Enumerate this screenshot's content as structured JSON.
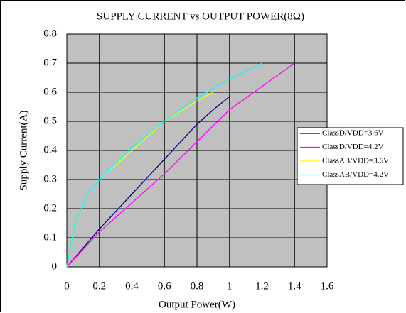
{
  "chart_data": {
    "type": "line",
    "title": "SUPPLY CURRENT vs OUTPUT POWER(8Ω)",
    "x_label": "Output Power(W)",
    "y_label": "Supply Current(A)",
    "xlim": [
      0,
      1.6
    ],
    "xticks": [
      0,
      0.2,
      0.4,
      0.6,
      0.8,
      1,
      1.2,
      1.4,
      1.6
    ],
    "ylim": [
      0,
      0.8
    ],
    "yticks": [
      0,
      0.1,
      0.2,
      0.3,
      0.4,
      0.5,
      0.6,
      0.7,
      0.8
    ],
    "grid": true,
    "legend": "right",
    "series": [
      {
        "name": "ClassD/VDD=3.6V",
        "color": "#000080",
        "x": [
          0,
          0.2,
          0.4,
          0.6,
          0.8,
          0.9,
          1.0
        ],
        "values": [
          0,
          0.13,
          0.25,
          0.37,
          0.49,
          0.54,
          0.585
        ]
      },
      {
        "name": "ClassD/VDD=4.2V",
        "color": "#ff00ff",
        "x": [
          0,
          0.2,
          0.4,
          0.6,
          0.8,
          1.0,
          1.2,
          1.4
        ],
        "values": [
          0,
          0.12,
          0.22,
          0.32,
          0.43,
          0.54,
          0.62,
          0.7
        ]
      },
      {
        "name": "ClassAB/VDD=3.6V",
        "color": "#ffff00",
        "x": [
          0,
          0.05,
          0.13,
          0.2,
          0.4,
          0.6,
          0.8,
          0.9
        ],
        "values": [
          0,
          0.15,
          0.25,
          0.3,
          0.4,
          0.5,
          0.57,
          0.6
        ]
      },
      {
        "name": "ClassAB/VDD=4.2V",
        "color": "#00ffff",
        "x": [
          0,
          0.05,
          0.13,
          0.2,
          0.4,
          0.6,
          0.8,
          1.0,
          1.2
        ],
        "values": [
          0,
          0.15,
          0.25,
          0.3,
          0.41,
          0.5,
          0.58,
          0.645,
          0.7
        ]
      }
    ]
  }
}
